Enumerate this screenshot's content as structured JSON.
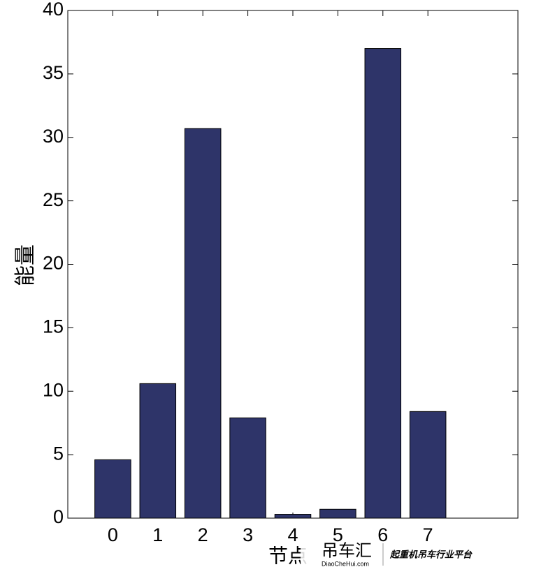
{
  "chart_data": {
    "type": "bar",
    "xlabel": "节点",
    "ylabel": "能量",
    "x": [
      0,
      1,
      2,
      3,
      4,
      5,
      6,
      7
    ],
    "values": [
      4.6,
      10.6,
      30.7,
      7.9,
      0.3,
      0.7,
      37.0,
      8.4
    ],
    "color": "#2e3469",
    "xlim": [
      -1,
      9
    ],
    "xticks": [
      0,
      1,
      2,
      3,
      4,
      5,
      6,
      7
    ],
    "ylim": [
      0,
      40
    ],
    "yticks": [
      0,
      5,
      10,
      15,
      20,
      25,
      30,
      35,
      40
    ]
  },
  "watermark": {
    "name": "吊车汇",
    "url": "DiaoCheHui.com",
    "slogan": "起重机吊车行业平台"
  }
}
